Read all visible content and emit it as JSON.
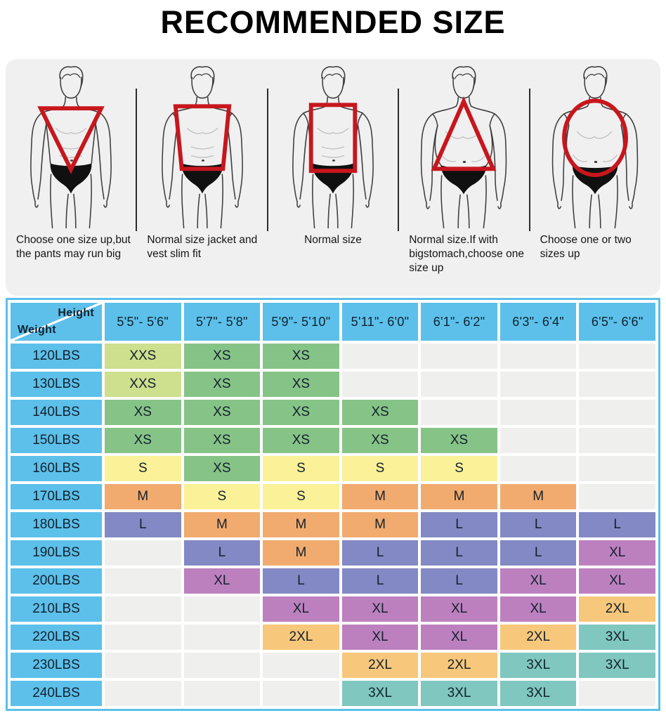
{
  "title": "RECOMMENDED SIZE",
  "body_types": {
    "figures": [
      {
        "overlay": "inverted-triangle-icon",
        "caption": "Choose one size up,but the pants may run big"
      },
      {
        "overlay": "trapezoid-icon",
        "caption": "Normal size jacket and vest slim fit"
      },
      {
        "overlay": "rectangle-icon",
        "caption": "Normal size"
      },
      {
        "overlay": "triangle-icon",
        "caption": "Normal size.If with bigstomach,choose one size up"
      },
      {
        "overlay": "oval-icon",
        "caption": "Choose one or two sizes up"
      }
    ]
  },
  "size_table": {
    "corner": {
      "top_right": "Height",
      "bottom_left": "Weight"
    },
    "height_columns": [
      "5'5\"- 5'6\"",
      "5'7\"- 5'8\"",
      "5'9\"- 5'10\"",
      "5'11\"- 6'0\"",
      "6'1\"- 6'2\"",
      "6'3\"- 6'4\"",
      "6'5\"- 6'6\""
    ],
    "rows": [
      {
        "weight": "120LBS",
        "sizes": [
          "XXS",
          "XS",
          "XS",
          "",
          "",
          "",
          ""
        ]
      },
      {
        "weight": "130LBS",
        "sizes": [
          "XXS",
          "XS",
          "XS",
          "",
          "",
          "",
          ""
        ]
      },
      {
        "weight": "140LBS",
        "sizes": [
          "XS",
          "XS",
          "XS",
          "XS",
          "",
          "",
          ""
        ]
      },
      {
        "weight": "150LBS",
        "sizes": [
          "XS",
          "XS",
          "XS",
          "XS",
          "XS",
          "",
          ""
        ]
      },
      {
        "weight": "160LBS",
        "sizes": [
          "S",
          "XS",
          "S",
          "S",
          "S",
          "",
          ""
        ]
      },
      {
        "weight": "170LBS",
        "sizes": [
          "M",
          "S",
          "S",
          "M",
          "M",
          "M",
          ""
        ]
      },
      {
        "weight": "180LBS",
        "sizes": [
          "L",
          "M",
          "M",
          "M",
          "L",
          "L",
          "L"
        ]
      },
      {
        "weight": "190LBS",
        "sizes": [
          "",
          "L",
          "M",
          "L",
          "L",
          "L",
          "XL"
        ]
      },
      {
        "weight": "200LBS",
        "sizes": [
          "",
          "XL",
          "L",
          "L",
          "L",
          "XL",
          "XL"
        ]
      },
      {
        "weight": "210LBS",
        "sizes": [
          "",
          "",
          "XL",
          "XL",
          "XL",
          "XL",
          "2XL"
        ]
      },
      {
        "weight": "220LBS",
        "sizes": [
          "",
          "",
          "2XL",
          "XL",
          "XL",
          "2XL",
          "3XL"
        ]
      },
      {
        "weight": "230LBS",
        "sizes": [
          "",
          "",
          "",
          "2XL",
          "2XL",
          "3XL",
          "3XL"
        ]
      },
      {
        "weight": "240LBS",
        "sizes": [
          "",
          "",
          "",
          "3XL",
          "3XL",
          "3XL",
          ""
        ]
      }
    ]
  },
  "colors": {
    "accent_blue": "#5CC0EA",
    "panel_gray": "#F0F0F0",
    "overlay_red": "#C8161D",
    "empty_cell": "#EFEFED",
    "size_colors": {
      "XXS": "#CEDF8E",
      "XS": "#86C387",
      "S": "#FAF199",
      "M": "#F1AB6E",
      "L": "#8289C4",
      "XL": "#BD80BF",
      "2XL": "#F7C77B",
      "3XL": "#7FC7BF"
    }
  },
  "chart_data": {
    "type": "table",
    "title": "RECOMMENDED SIZE",
    "columns": [
      "5'5\"- 5'6\"",
      "5'7\"- 5'8\"",
      "5'9\"- 5'10\"",
      "5'11\"- 6'0\"",
      "6'1\"- 6'2\"",
      "6'3\"- 6'4\"",
      "6'5\"- 6'6\""
    ],
    "row_labels": [
      "120LBS",
      "130LBS",
      "140LBS",
      "150LBS",
      "160LBS",
      "170LBS",
      "180LBS",
      "190LBS",
      "200LBS",
      "210LBS",
      "220LBS",
      "230LBS",
      "240LBS"
    ],
    "values": [
      [
        "XXS",
        "XS",
        "XS",
        "",
        "",
        "",
        ""
      ],
      [
        "XXS",
        "XS",
        "XS",
        "",
        "",
        "",
        ""
      ],
      [
        "XS",
        "XS",
        "XS",
        "XS",
        "",
        "",
        ""
      ],
      [
        "XS",
        "XS",
        "XS",
        "XS",
        "XS",
        "",
        ""
      ],
      [
        "S",
        "XS",
        "S",
        "S",
        "S",
        "",
        ""
      ],
      [
        "M",
        "S",
        "S",
        "M",
        "M",
        "M",
        ""
      ],
      [
        "L",
        "M",
        "M",
        "M",
        "L",
        "L",
        "L"
      ],
      [
        "",
        "L",
        "M",
        "L",
        "L",
        "L",
        "XL"
      ],
      [
        "",
        "XL",
        "L",
        "L",
        "L",
        "XL",
        "XL"
      ],
      [
        "",
        "",
        "XL",
        "XL",
        "XL",
        "XL",
        "2XL"
      ],
      [
        "",
        "",
        "2XL",
        "XL",
        "XL",
        "2XL",
        "3XL"
      ],
      [
        "",
        "",
        "",
        "2XL",
        "2XL",
        "3XL",
        "3XL"
      ],
      [
        "",
        "",
        "",
        "3XL",
        "3XL",
        "3XL",
        ""
      ]
    ],
    "legend_position": "none",
    "grid": true
  }
}
